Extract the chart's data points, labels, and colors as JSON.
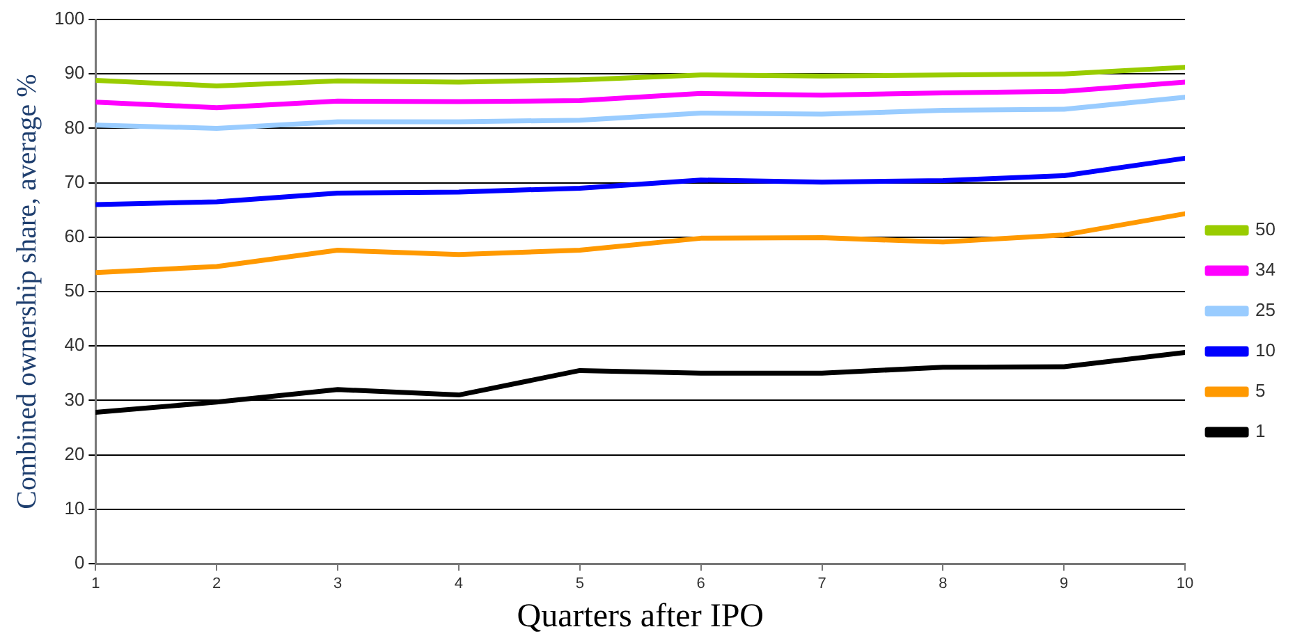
{
  "chart_data": {
    "type": "line",
    "xlabel": "Quarters after IPO",
    "ylabel": "Combined ownership share, average %",
    "x": [
      1,
      2,
      3,
      4,
      5,
      6,
      7,
      8,
      9,
      10
    ],
    "xlim": [
      1,
      10
    ],
    "xticks": [
      1,
      2,
      3,
      4,
      5,
      6,
      7,
      8,
      9,
      10
    ],
    "ylim": [
      0,
      100
    ],
    "yticks": [
      0,
      10,
      20,
      30,
      40,
      50,
      60,
      70,
      80,
      90,
      100
    ],
    "grid": "y",
    "legend": "right",
    "marker": "none",
    "line_style": "solid",
    "series": [
      {
        "name": "50",
        "color": "#99cc00",
        "values": [
          88.8,
          87.8,
          88.7,
          88.5,
          88.9,
          89.8,
          89.6,
          89.8,
          90.0,
          91.2
        ]
      },
      {
        "name": "34",
        "color": "#ff00ff",
        "values": [
          84.8,
          83.8,
          85.0,
          84.9,
          85.1,
          86.4,
          86.1,
          86.5,
          86.8,
          88.5
        ]
      },
      {
        "name": "25",
        "color": "#99ccff",
        "values": [
          80.6,
          80.0,
          81.2,
          81.2,
          81.5,
          82.8,
          82.6,
          83.3,
          83.5,
          85.7
        ]
      },
      {
        "name": "10",
        "color": "#0000ff",
        "values": [
          66.0,
          66.5,
          68.1,
          68.3,
          69.0,
          70.5,
          70.1,
          70.4,
          71.3,
          74.5
        ]
      },
      {
        "name": "5",
        "color": "#ff9900",
        "values": [
          53.5,
          54.6,
          57.6,
          56.8,
          57.6,
          59.8,
          59.9,
          59.1,
          60.4,
          64.3
        ]
      },
      {
        "name": "1",
        "color": "#000000",
        "values": [
          27.8,
          29.7,
          32.0,
          31.0,
          35.5,
          35.0,
          35.0,
          36.1,
          36.2,
          38.8
        ]
      }
    ]
  }
}
